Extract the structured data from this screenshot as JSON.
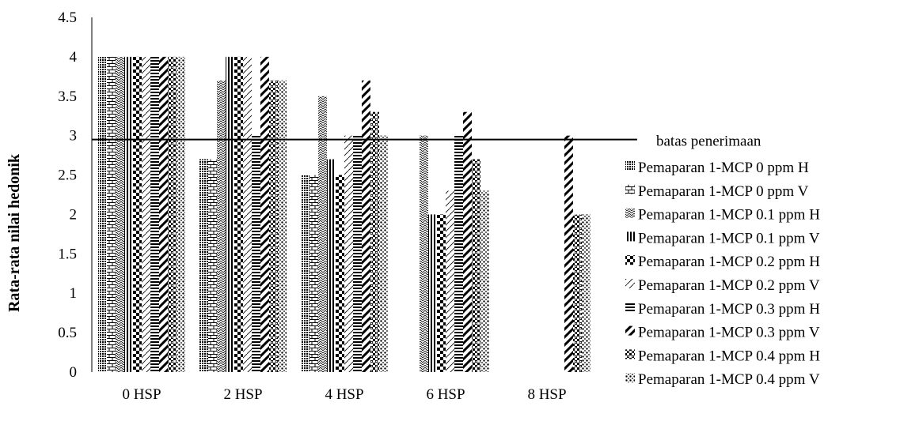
{
  "chart_data": {
    "type": "bar",
    "title": "",
    "xlabel": "",
    "ylabel": "Rata-rata nilai hedonik",
    "ylim": [
      0,
      4.5
    ],
    "yticks": [
      "0",
      "0.5",
      "1",
      "1.5",
      "2",
      "2.5",
      "3",
      "3.5",
      "4",
      "4.5"
    ],
    "grid": false,
    "legend_position": "right",
    "categories": [
      "0 HSP",
      "2 HSP",
      "4 HSP",
      "6 HSP",
      "8 HSP"
    ],
    "reference_line": {
      "value": 2.95,
      "label": "batas penerimaan"
    },
    "series": [
      {
        "name": "Pemaparan 1-MCP 0 ppm H",
        "pattern": "dots-grid",
        "values": [
          4.0,
          2.7,
          2.5,
          null,
          null
        ]
      },
      {
        "name": "Pemaparan 1-MCP 0 ppm V",
        "pattern": "bricks",
        "values": [
          4.0,
          2.7,
          2.5,
          null,
          null
        ]
      },
      {
        "name": "Pemaparan 1-MCP 0.1 ppm H",
        "pattern": "zigzag",
        "values": [
          4.0,
          3.7,
          3.5,
          3.0,
          null
        ]
      },
      {
        "name": "Pemaparan 1-MCP 0.1 ppm V",
        "pattern": "vertical-stripes",
        "values": [
          4.0,
          4.0,
          2.7,
          2.0,
          null
        ]
      },
      {
        "name": "Pemaparan 1-MCP 0.2 ppm H",
        "pattern": "checker",
        "values": [
          4.0,
          4.0,
          2.5,
          2.0,
          null
        ]
      },
      {
        "name": "Pemaparan 1-MCP 0.2 ppm V",
        "pattern": "light-diagonal",
        "values": [
          4.0,
          4.0,
          3.0,
          2.3,
          null
        ]
      },
      {
        "name": "Pemaparan 1-MCP 0.3 ppm H",
        "pattern": "horizontal-stripes",
        "values": [
          4.0,
          3.0,
          3.0,
          3.0,
          null
        ]
      },
      {
        "name": "Pemaparan 1-MCP 0.3 ppm V",
        "pattern": "wide-diagonal",
        "values": [
          4.0,
          4.0,
          3.7,
          3.3,
          3.0
        ]
      },
      {
        "name": "Pemaparan 1-MCP 0.4 ppm H",
        "pattern": "dense-checker",
        "values": [
          4.0,
          3.7,
          3.3,
          2.7,
          2.0
        ]
      },
      {
        "name": "Pemaparan 1-MCP 0.4 ppm V",
        "pattern": "dots",
        "values": [
          4.0,
          3.7,
          3.0,
          2.3,
          2.0
        ]
      }
    ]
  }
}
